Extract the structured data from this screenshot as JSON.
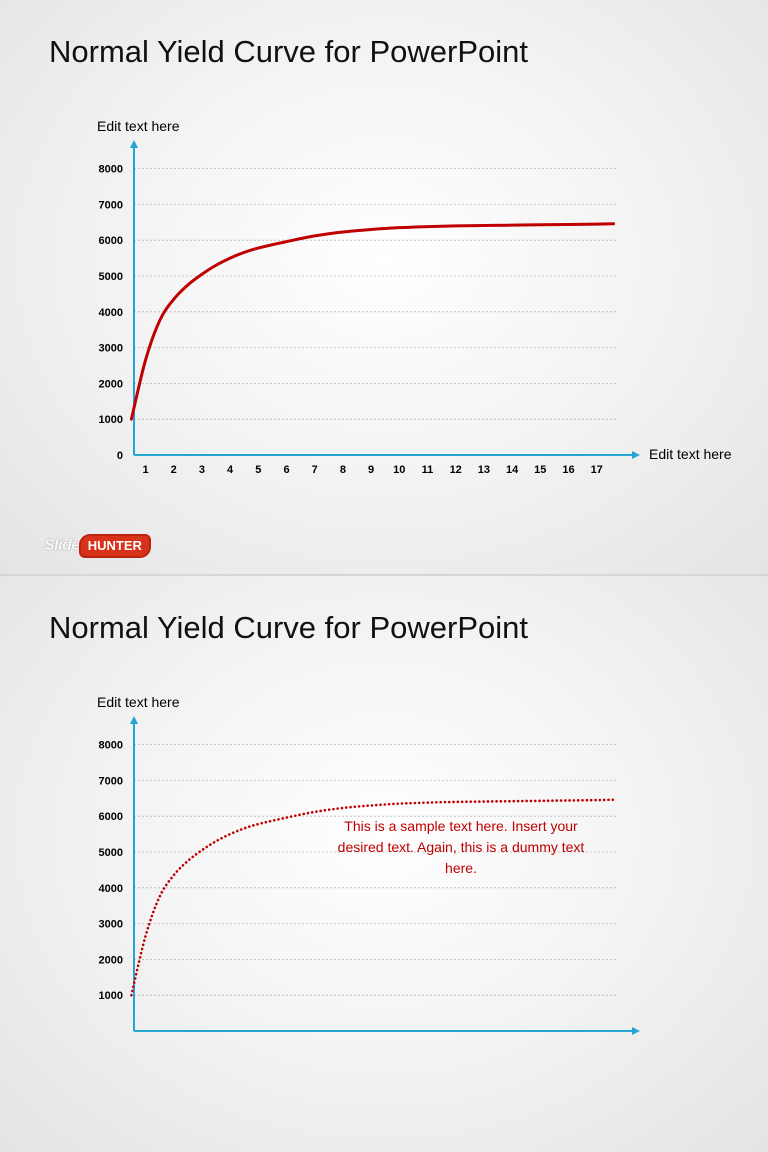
{
  "slides": [
    {
      "title": "Normal Yield Curve for PowerPoint",
      "logo": {
        "slide_text": "Slide",
        "hunter_text": "HUNTER"
      }
    },
    {
      "title": "Normal Yield Curve for PowerPoint",
      "annotation": "This is a sample text here. Insert your desired text. Again, this is a dummy text here."
    }
  ],
  "colors": {
    "axis": "#23a5d6",
    "curve": "#c00000",
    "grid": "#b8b8b8",
    "text": "#000000"
  },
  "chart_data": [
    {
      "type": "line",
      "xlabel": "Edit text here",
      "ylabel": "Edit text here",
      "xticks": [
        "1",
        "2",
        "3",
        "4",
        "5",
        "6",
        "7",
        "8",
        "9",
        "10",
        "11",
        "12",
        "13",
        "14",
        "15",
        "16",
        "17"
      ],
      "yticks": [
        "0",
        "1000",
        "2000",
        "3000",
        "4000",
        "5000",
        "6000",
        "7000",
        "8000"
      ],
      "ylim": [
        0,
        8000
      ],
      "grid": true,
      "series": [
        {
          "line_style": "solid",
          "x": [
            0.5,
            1,
            1.5,
            2,
            2.5,
            3,
            3.5,
            4,
            4.5,
            5,
            6,
            7,
            8,
            9,
            10,
            11,
            12,
            13,
            14,
            15,
            16,
            17,
            17.6
          ],
          "y": [
            1000,
            2650,
            3750,
            4350,
            4750,
            5050,
            5300,
            5500,
            5660,
            5780,
            5960,
            6120,
            6230,
            6300,
            6350,
            6380,
            6400,
            6410,
            6420,
            6430,
            6440,
            6450,
            6460
          ]
        }
      ]
    },
    {
      "type": "line",
      "ylabel": "Edit text here",
      "yticks": [
        "1000",
        "2000",
        "3000",
        "4000",
        "5000",
        "6000",
        "7000",
        "8000"
      ],
      "ylim": [
        0,
        8000
      ],
      "grid": true,
      "series": [
        {
          "line_style": "dotted",
          "x": [
            0.5,
            1,
            1.5,
            2,
            2.5,
            3,
            3.5,
            4,
            4.5,
            5,
            6,
            7,
            8,
            9,
            10,
            11,
            12,
            13,
            14,
            15,
            16,
            17,
            17.6
          ],
          "y": [
            1000,
            2650,
            3750,
            4350,
            4750,
            5050,
            5300,
            5500,
            5660,
            5780,
            5960,
            6120,
            6230,
            6300,
            6350,
            6380,
            6400,
            6410,
            6420,
            6430,
            6440,
            6450,
            6460
          ]
        }
      ]
    }
  ]
}
